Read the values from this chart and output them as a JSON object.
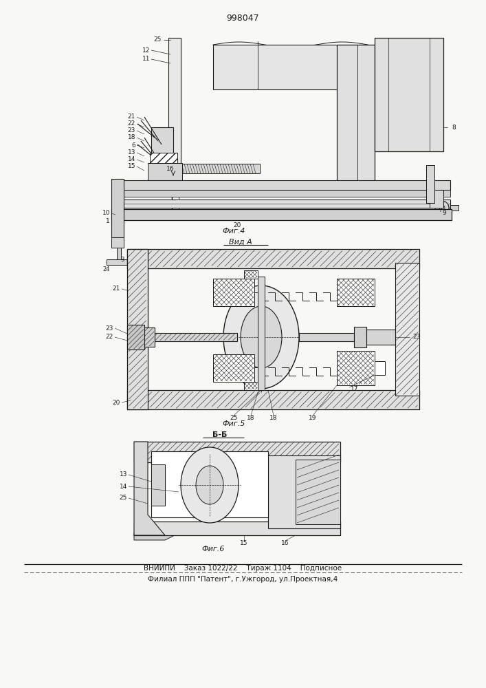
{
  "title": "998047",
  "fig4_label": "Фиг.4",
  "fig5_label": "Фиг.5",
  "fig6_label": "Фиг.6",
  "view_a_label": "Вид A",
  "section_bb_label": "Б-Б",
  "footer_line1": "ВНИИПИ    Заказ 1022/22    Тираж 1104    Подписное",
  "footer_line2": "Филиал ППП \"Патент\", г.Ужгород, ул.Проектная,4",
  "bg_color": "#f8f8f5",
  "line_color": "#1a1a1a",
  "fig_width": 7.07,
  "fig_height": 10.0,
  "dpi": 100
}
